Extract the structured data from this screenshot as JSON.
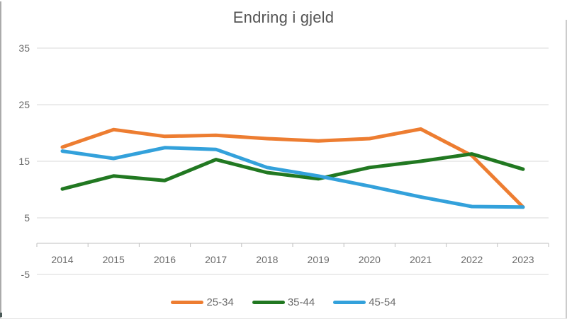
{
  "title": "Endring i gjeld",
  "colors": {
    "gridline": "#d9d9d9",
    "axis_line": "#bfbfbf",
    "tick_text": "#6b6b6b",
    "title_text": "#535353",
    "series_orange": "#ed7d31",
    "series_green": "#217821",
    "series_blue": "#33a1db"
  },
  "chart_data": {
    "type": "line",
    "title": "Endring i gjeld",
    "categories": [
      "2014",
      "2015",
      "2016",
      "2017",
      "2018",
      "2019",
      "2020",
      "2021",
      "2022",
      "2023"
    ],
    "series": [
      {
        "name": "25-34",
        "color": "#ed7d31",
        "values": [
          17.5,
          20.6,
          19.4,
          19.6,
          19.0,
          18.6,
          19.0,
          20.7,
          16.0,
          6.9
        ]
      },
      {
        "name": "35-44",
        "color": "#217821",
        "values": [
          10.1,
          12.4,
          11.6,
          15.3,
          13.0,
          11.9,
          13.9,
          15.0,
          16.3,
          13.6
        ]
      },
      {
        "name": "45-54",
        "color": "#33a1db",
        "values": [
          16.8,
          15.5,
          17.4,
          17.1,
          13.9,
          12.4,
          10.6,
          8.7,
          7.0,
          6.9
        ]
      }
    ],
    "xlabel": "",
    "ylabel": "",
    "y_ticks": [
      35,
      25,
      15,
      5,
      -5
    ],
    "ylim": [
      -5,
      35
    ],
    "grid": "horizontal",
    "legend_position": "bottom-center"
  }
}
